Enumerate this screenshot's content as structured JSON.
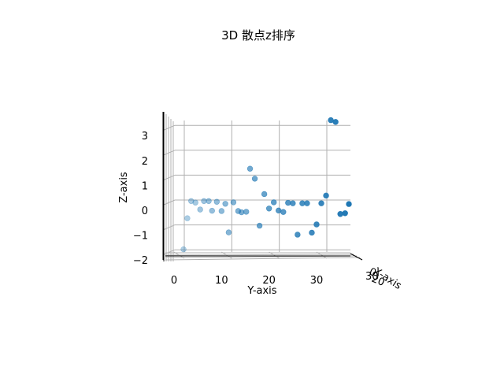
{
  "chart_data": {
    "type": "scatter",
    "projection": "3d",
    "title": "3D 散点z排序",
    "xlabel": "X-axis",
    "ylabel": "Y-axis",
    "zlabel": "Z-axis",
    "x_ticklabels": [
      "0",
      "20"
    ],
    "x_ticklabels_extra": [
      "30"
    ],
    "y_ticks": [
      0,
      10,
      20,
      30
    ],
    "y_ticklabels": [
      "0",
      "10",
      "20",
      "30"
    ],
    "z_ticks": [
      -2,
      -1,
      0,
      1,
      2,
      3
    ],
    "z_ticklabels": [
      "−2",
      "−1",
      "0",
      "1",
      "2",
      "3"
    ],
    "ylim": [
      -2.3,
      36.8
    ],
    "zlim": [
      -2.2,
      3.8
    ],
    "grid": true,
    "color": "#1f77b4",
    "points": [
      {
        "y": 2.0,
        "z": -1.57
      },
      {
        "y": 2.8,
        "z": -0.32
      },
      {
        "y": 3.6,
        "z": 0.37
      },
      {
        "y": 4.5,
        "z": 0.31
      },
      {
        "y": 5.5,
        "z": 0.03
      },
      {
        "y": 6.3,
        "z": 0.37
      },
      {
        "y": 7.3,
        "z": 0.37
      },
      {
        "y": 8.0,
        "z": -0.02
      },
      {
        "y": 9.0,
        "z": 0.34
      },
      {
        "y": 10.0,
        "z": -0.03
      },
      {
        "y": 10.8,
        "z": 0.26
      },
      {
        "y": 11.5,
        "z": -0.89
      },
      {
        "y": 12.5,
        "z": 0.32
      },
      {
        "y": 13.5,
        "z": -0.03
      },
      {
        "y": 14.2,
        "z": -0.08
      },
      {
        "y": 15.2,
        "z": -0.06
      },
      {
        "y": 16.0,
        "z": 1.67
      },
      {
        "y": 17.0,
        "z": 1.27
      },
      {
        "y": 18.0,
        "z": -0.62
      },
      {
        "y": 19.0,
        "z": 0.65
      },
      {
        "y": 20.0,
        "z": 0.07
      },
      {
        "y": 21.0,
        "z": 0.32
      },
      {
        "y": 22.0,
        "z": -0.01
      },
      {
        "y": 23.0,
        "z": -0.07
      },
      {
        "y": 24.0,
        "z": 0.3
      },
      {
        "y": 25.0,
        "z": 0.28
      },
      {
        "y": 26.0,
        "z": -0.98
      },
      {
        "y": 27.0,
        "z": 0.28
      },
      {
        "y": 28.0,
        "z": 0.28
      },
      {
        "y": 29.0,
        "z": -0.9
      },
      {
        "y": 30.0,
        "z": -0.57
      },
      {
        "y": 31.0,
        "z": 0.28
      },
      {
        "y": 32.0,
        "z": 0.59
      },
      {
        "y": 33.0,
        "z": 3.62
      },
      {
        "y": 34.0,
        "z": 3.55
      },
      {
        "y": 35.0,
        "z": -0.15
      },
      {
        "y": 36.0,
        "z": -0.12
      },
      {
        "y": 36.8,
        "z": 0.25
      }
    ]
  }
}
